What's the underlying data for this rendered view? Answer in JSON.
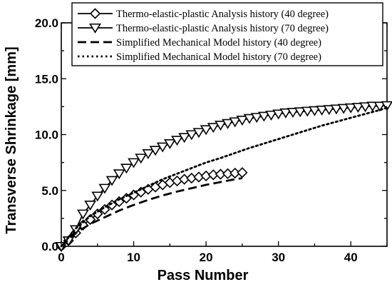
{
  "chart_data": {
    "type": "line",
    "title": "",
    "xlabel": "Pass Number",
    "ylabel": "Transverse Shrinkage [mm]",
    "xlim": [
      0,
      45
    ],
    "ylim": [
      0,
      20
    ],
    "x_ticks": [
      0,
      10,
      20,
      30,
      40
    ],
    "y_ticks": [
      0,
      5,
      10,
      15,
      20
    ],
    "x_tick_labels": [
      "0",
      "10",
      "20",
      "30",
      "40"
    ],
    "y_tick_labels": [
      "0.0",
      "5.0",
      "10.0",
      "15.0",
      "20.0"
    ],
    "grid": false,
    "legend_position": "top-right",
    "series": [
      {
        "name": "Thermo-elastic-plastic Analysis history (40 degree)",
        "style": "solid",
        "marker": "diamond",
        "color": "#000000",
        "x": [
          0,
          1,
          2,
          3,
          4,
          5,
          6,
          7,
          8,
          9,
          10,
          11,
          12,
          13,
          14,
          15,
          16,
          17,
          18,
          19,
          20,
          21,
          22,
          23,
          24,
          25
        ],
        "y": [
          0.0,
          0.5,
          1.2,
          1.9,
          2.4,
          2.9,
          3.3,
          3.7,
          4.0,
          4.3,
          4.6,
          4.85,
          5.1,
          5.3,
          5.5,
          5.7,
          5.85,
          6.0,
          6.1,
          6.2,
          6.3,
          6.4,
          6.45,
          6.5,
          6.55,
          6.6
        ]
      },
      {
        "name": "Thermo-elastic-plastic Analysis history (70 degree)",
        "style": "solid",
        "marker": "triangle-down",
        "color": "#000000",
        "x": [
          0,
          1,
          2,
          3,
          4,
          5,
          6,
          7,
          8,
          9,
          10,
          11,
          12,
          13,
          14,
          15,
          16,
          17,
          18,
          19,
          20,
          21,
          22,
          23,
          24,
          25,
          26,
          27,
          28,
          29,
          30,
          31,
          32,
          33,
          34,
          35,
          36,
          37,
          38,
          39,
          40,
          41,
          42,
          43,
          44,
          45
        ],
        "y": [
          0.0,
          0.5,
          1.5,
          2.9,
          3.7,
          4.5,
          5.2,
          5.9,
          6.5,
          7.0,
          7.5,
          7.9,
          8.3,
          8.6,
          8.9,
          9.2,
          9.5,
          9.75,
          10.0,
          10.2,
          10.45,
          10.65,
          10.85,
          11.0,
          11.15,
          11.3,
          11.45,
          11.55,
          11.65,
          11.75,
          11.85,
          11.95,
          12.0,
          12.05,
          12.1,
          12.15,
          12.2,
          12.25,
          12.3,
          12.35,
          12.4,
          12.45,
          12.5,
          12.55,
          12.55,
          12.6
        ]
      },
      {
        "name": "Simplified Mechanical Model history (40 degree)",
        "style": "dashed",
        "marker": "none",
        "color": "#000000",
        "x": [
          0,
          2,
          4,
          6,
          8,
          10,
          12,
          14,
          16,
          18,
          20,
          22,
          24,
          25
        ],
        "y": [
          0.0,
          1.2,
          2.0,
          2.6,
          3.2,
          3.7,
          4.15,
          4.55,
          4.9,
          5.2,
          5.5,
          5.75,
          6.0,
          6.1
        ]
      },
      {
        "name": "Simplified Mechanical Model history (70 degree)",
        "style": "dotted",
        "marker": "none",
        "color": "#000000",
        "x": [
          0,
          2,
          4,
          6,
          8,
          10,
          12,
          14,
          16,
          18,
          20,
          22,
          24,
          26,
          28,
          30,
          32,
          34,
          36,
          38,
          40,
          42,
          44,
          45
        ],
        "y": [
          0.0,
          1.6,
          2.7,
          3.5,
          4.2,
          4.8,
          5.4,
          6.0,
          6.5,
          7.0,
          7.5,
          7.9,
          8.35,
          8.8,
          9.2,
          9.6,
          10.0,
          10.4,
          10.8,
          11.15,
          11.5,
          11.85,
          12.2,
          12.4
        ]
      }
    ]
  }
}
